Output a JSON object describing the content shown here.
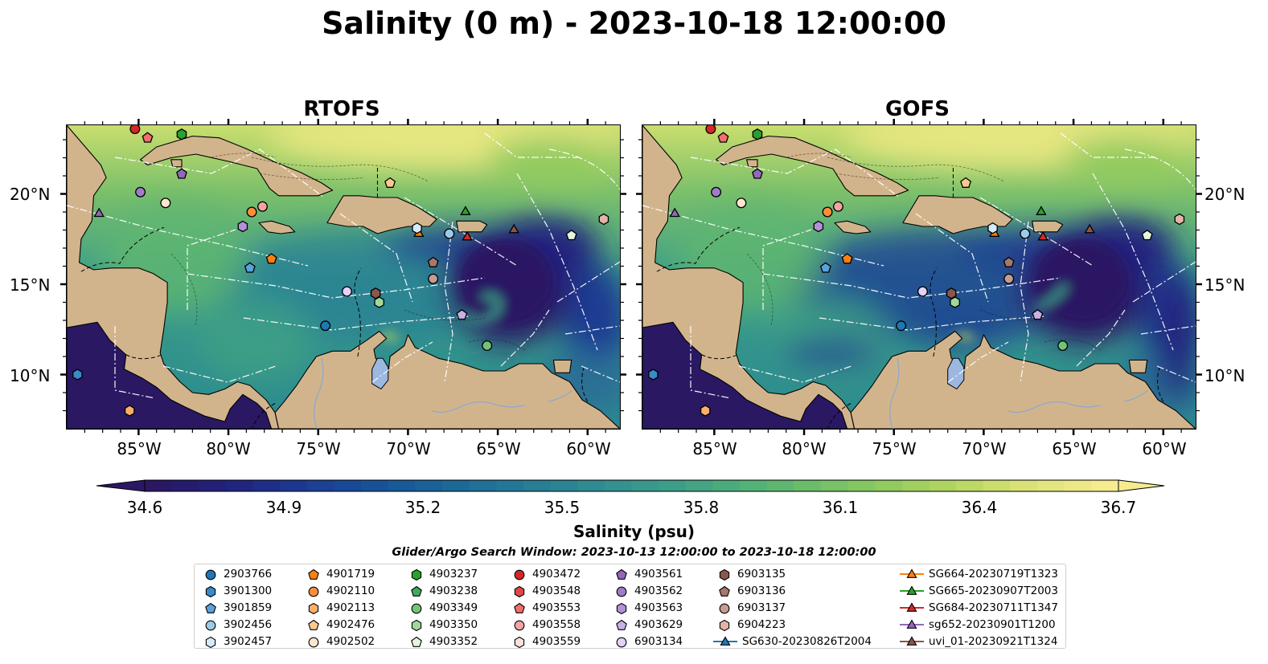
{
  "title": "Salinity (0 m) - 2023-10-18 12:00:00",
  "panels": [
    {
      "title": "RTOFS"
    },
    {
      "title": "GOFS"
    }
  ],
  "lat_labels": [
    "20°N",
    "15°N",
    "10°N"
  ],
  "lon_labels": [
    "85°W",
    "80°W",
    "75°W",
    "70°W",
    "65°W",
    "60°W"
  ],
  "colorbar": {
    "label": "Salinity (psu)",
    "ticks": [
      "34.6",
      "34.9",
      "35.2",
      "35.5",
      "35.8",
      "36.1",
      "36.4",
      "36.7"
    ],
    "range": [
      34.6,
      36.7
    ],
    "colormap": "haline",
    "colors": [
      "#2a1863",
      "#20237e",
      "#1c3a93",
      "#175398",
      "#1b6797",
      "#257a96",
      "#308c92",
      "#3b9d89",
      "#4fae7a",
      "#6dbd6a",
      "#90ca5e",
      "#b7d662",
      "#dde37a",
      "#f5eb8f"
    ],
    "extend": "both"
  },
  "land_color": "#d2b48c",
  "lake_color": "#9cb8e0",
  "search_window": "Glider/Argo Search Window: 2023-10-13 12:00:00 to 2023-10-18 12:00:00",
  "legend": [
    {
      "label": "2903766",
      "marker": "circle",
      "color": "#1f77b4"
    },
    {
      "label": "3901300",
      "marker": "hexagon",
      "color": "#3b89c9"
    },
    {
      "label": "3901859",
      "marker": "pentagon",
      "color": "#5aa2dc"
    },
    {
      "label": "3902456",
      "marker": "circle",
      "color": "#9ecae9"
    },
    {
      "label": "3902457",
      "marker": "hexagon",
      "color": "#d6ebf8"
    },
    {
      "label": "4901719",
      "marker": "pentagon",
      "color": "#ff7f0e"
    },
    {
      "label": "4902110",
      "marker": "circle",
      "color": "#fd8d3c"
    },
    {
      "label": "4902113",
      "marker": "hexagon",
      "color": "#fdae6b"
    },
    {
      "label": "4902476",
      "marker": "pentagon",
      "color": "#fdc98f"
    },
    {
      "label": "4902502",
      "marker": "circle",
      "color": "#fee6ce"
    },
    {
      "label": "4903237",
      "marker": "hexagon",
      "color": "#2ca02c"
    },
    {
      "label": "4903238",
      "marker": "pentagon",
      "color": "#41ab5d"
    },
    {
      "label": "4903349",
      "marker": "circle",
      "color": "#74c476"
    },
    {
      "label": "4903350",
      "marker": "hexagon",
      "color": "#a1d99b"
    },
    {
      "label": "4903352",
      "marker": "pentagon",
      "color": "#e5f5e0"
    },
    {
      "label": "4903472",
      "marker": "circle",
      "color": "#d62728"
    },
    {
      "label": "4903548",
      "marker": "hexagon",
      "color": "#e0474c"
    },
    {
      "label": "4903553",
      "marker": "pentagon",
      "color": "#ef6f6c"
    },
    {
      "label": "4903558",
      "marker": "circle",
      "color": "#f4a3a2"
    },
    {
      "label": "4903559",
      "marker": "hexagon",
      "color": "#fde0dd"
    },
    {
      "label": "4903561",
      "marker": "pentagon",
      "color": "#9467bd"
    },
    {
      "label": "4903562",
      "marker": "circle",
      "color": "#a07cc8"
    },
    {
      "label": "4903563",
      "marker": "hexagon",
      "color": "#b391d8"
    },
    {
      "label": "4903629",
      "marker": "pentagon",
      "color": "#c8b0e8"
    },
    {
      "label": "6903134",
      "marker": "circle",
      "color": "#e2d2f5"
    },
    {
      "label": "6903135",
      "marker": "hexagon",
      "color": "#8c564b"
    },
    {
      "label": "6903136",
      "marker": "pentagon",
      "color": "#a6776b"
    },
    {
      "label": "6903137",
      "marker": "circle",
      "color": "#c49c94"
    },
    {
      "label": "6904223",
      "marker": "hexagon",
      "color": "#e2b5a8"
    },
    {
      "label": "SG630-20230826T2004",
      "marker": "triangle-line",
      "color": "#1f77b4"
    },
    {
      "label": "SG664-20230719T1323",
      "marker": "triangle-line",
      "color": "#ff7f0e"
    },
    {
      "label": "SG665-20230907T2003",
      "marker": "triangle-line",
      "color": "#2ca02c"
    },
    {
      "label": "SG684-20230711T1347",
      "marker": "triangle-line",
      "color": "#d62728"
    },
    {
      "label": "sg652-20230901T1200",
      "marker": "triangle-line",
      "color": "#9467bd"
    },
    {
      "label": "uvi_01-20230921T1324",
      "marker": "triangle-line",
      "color": "#8c564b"
    }
  ],
  "markers": [
    {
      "id": "4903472",
      "marker": "circle",
      "color": "#d62728",
      "lon": -85.2,
      "lat": 23.6
    },
    {
      "id": "4903553",
      "marker": "pentagon",
      "color": "#ef6f6c",
      "lon": -84.5,
      "lat": 23.1
    },
    {
      "id": "4903237",
      "marker": "hexagon",
      "color": "#2ca02c",
      "lon": -82.6,
      "lat": 23.3
    },
    {
      "id": "4903561",
      "marker": "pentagon",
      "color": "#9467bd",
      "lon": -82.6,
      "lat": 21.1
    },
    {
      "id": "4903562",
      "marker": "circle",
      "color": "#a07cc8",
      "lon": -84.9,
      "lat": 20.1
    },
    {
      "id": "4902502",
      "marker": "circle",
      "color": "#fee6ce",
      "lon": -83.5,
      "lat": 19.5
    },
    {
      "id": "sg652-20230901T1200",
      "marker": "triangle",
      "color": "#9467bd",
      "lon": -87.2,
      "lat": 18.9
    },
    {
      "id": "4903558",
      "marker": "circle",
      "color": "#f4a3a2",
      "lon": -78.1,
      "lat": 19.3
    },
    {
      "id": "4902110",
      "marker": "circle",
      "color": "#fd8d3c",
      "lon": -78.7,
      "lat": 19.0
    },
    {
      "id": "4902476",
      "marker": "pentagon",
      "color": "#fdc98f",
      "lon": -71.0,
      "lat": 20.6
    },
    {
      "id": "4903563",
      "marker": "hexagon",
      "color": "#b391d8",
      "lon": -79.2,
      "lat": 18.2
    },
    {
      "id": "4901719",
      "marker": "pentagon",
      "color": "#ff7f0e",
      "lon": -77.6,
      "lat": 16.4
    },
    {
      "id": "3901859",
      "marker": "pentagon",
      "color": "#5aa2dc",
      "lon": -78.8,
      "lat": 15.9
    },
    {
      "id": "SG665-20230907T2003",
      "marker": "triangle",
      "color": "#2ca02c",
      "lon": -66.8,
      "lat": 19.0
    },
    {
      "id": "SG664-20230719T1323",
      "marker": "triangle",
      "color": "#ff7f0e",
      "lon": -69.4,
      "lat": 17.8
    },
    {
      "id": "3902457",
      "marker": "hexagon",
      "color": "#d6ebf8",
      "lon": -69.5,
      "lat": 18.1
    },
    {
      "id": "3902456",
      "marker": "circle",
      "color": "#9ecae9",
      "lon": -67.7,
      "lat": 17.8
    },
    {
      "id": "SG684-20230711T1347",
      "marker": "triangle",
      "color": "#d62728",
      "lon": -66.7,
      "lat": 17.6
    },
    {
      "id": "uvi_01-20230921T1324",
      "marker": "triangle",
      "color": "#8c564b",
      "lon": -64.1,
      "lat": 18.0
    },
    {
      "id": "4903352",
      "marker": "pentagon",
      "color": "#e5f5e0",
      "lon": -60.9,
      "lat": 17.7
    },
    {
      "id": "6904223",
      "marker": "hexagon",
      "color": "#e2b5a8",
      "lon": -59.1,
      "lat": 18.6
    },
    {
      "id": "6903136",
      "marker": "pentagon",
      "color": "#a6776b",
      "lon": -68.6,
      "lat": 16.2
    },
    {
      "id": "6903137",
      "marker": "circle",
      "color": "#c49c94",
      "lon": -68.6,
      "lat": 15.3
    },
    {
      "id": "6903134",
      "marker": "circle",
      "color": "#e2d2f5",
      "lon": -73.4,
      "lat": 14.6
    },
    {
      "id": "6903135",
      "marker": "hexagon",
      "color": "#8c564b",
      "lon": -71.8,
      "lat": 14.5
    },
    {
      "id": "4903350",
      "marker": "hexagon",
      "color": "#a1d99b",
      "lon": -71.6,
      "lat": 14.0
    },
    {
      "id": "4903629",
      "marker": "pentagon",
      "color": "#c8b0e8",
      "lon": -67.0,
      "lat": 13.3
    },
    {
      "id": "2903766",
      "marker": "circle",
      "color": "#1f77b4",
      "lon": -74.6,
      "lat": 12.7
    },
    {
      "id": "4903349",
      "marker": "circle",
      "color": "#74c476",
      "lon": -65.6,
      "lat": 11.6
    },
    {
      "id": "3901300",
      "marker": "hexagon",
      "color": "#3b89c9",
      "lon": -88.4,
      "lat": 10.0
    },
    {
      "id": "4902113",
      "marker": "hexagon",
      "color": "#fdae6b",
      "lon": -85.5,
      "lat": 8.0
    }
  ]
}
